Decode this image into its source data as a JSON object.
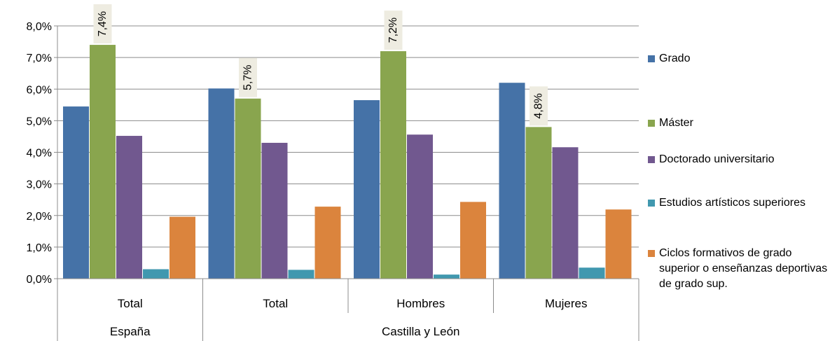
{
  "chart_data": {
    "type": "bar",
    "title": "",
    "xlabel": "",
    "ylabel": "",
    "ylim": [
      0,
      8
    ],
    "y_ticks": [
      "0,0%",
      "1,0%",
      "2,0%",
      "3,0%",
      "4,0%",
      "5,0%",
      "6,0%",
      "7,0%",
      "8,0%"
    ],
    "grid": true,
    "legend_position": "right",
    "categories": [
      "Total",
      "Total",
      "Hombres",
      "Mujeres"
    ],
    "groups": [
      {
        "label": "España",
        "categories": [
          0
        ]
      },
      {
        "label": "Castilla y León",
        "categories": [
          1,
          2,
          3
        ]
      }
    ],
    "series": [
      {
        "name": "Grado",
        "color": "#4572A7",
        "values": [
          5.45,
          6.02,
          5.65,
          6.2
        ]
      },
      {
        "name": "Máster",
        "color": "#89A54E",
        "values": [
          7.4,
          5.7,
          7.2,
          4.8
        ]
      },
      {
        "name": "Doctorado universitario",
        "color": "#71588F",
        "values": [
          4.52,
          4.3,
          4.56,
          4.16
        ]
      },
      {
        "name": "Estudios artísticos superiores",
        "color": "#4198AF",
        "values": [
          0.3,
          0.28,
          0.13,
          0.35
        ]
      },
      {
        "name": "Ciclos formativos de grado superior o enseñanzas deportivas de grado sup.",
        "color": "#DB843D",
        "values": [
          1.96,
          2.28,
          2.43,
          2.19
        ]
      }
    ],
    "data_labels": [
      {
        "series": 1,
        "category": 0,
        "text": "7,4%"
      },
      {
        "series": 1,
        "category": 1,
        "text": "5,7%"
      },
      {
        "series": 1,
        "category": 2,
        "text": "7,2%"
      },
      {
        "series": 1,
        "category": 3,
        "text": "4,8%"
      }
    ]
  }
}
